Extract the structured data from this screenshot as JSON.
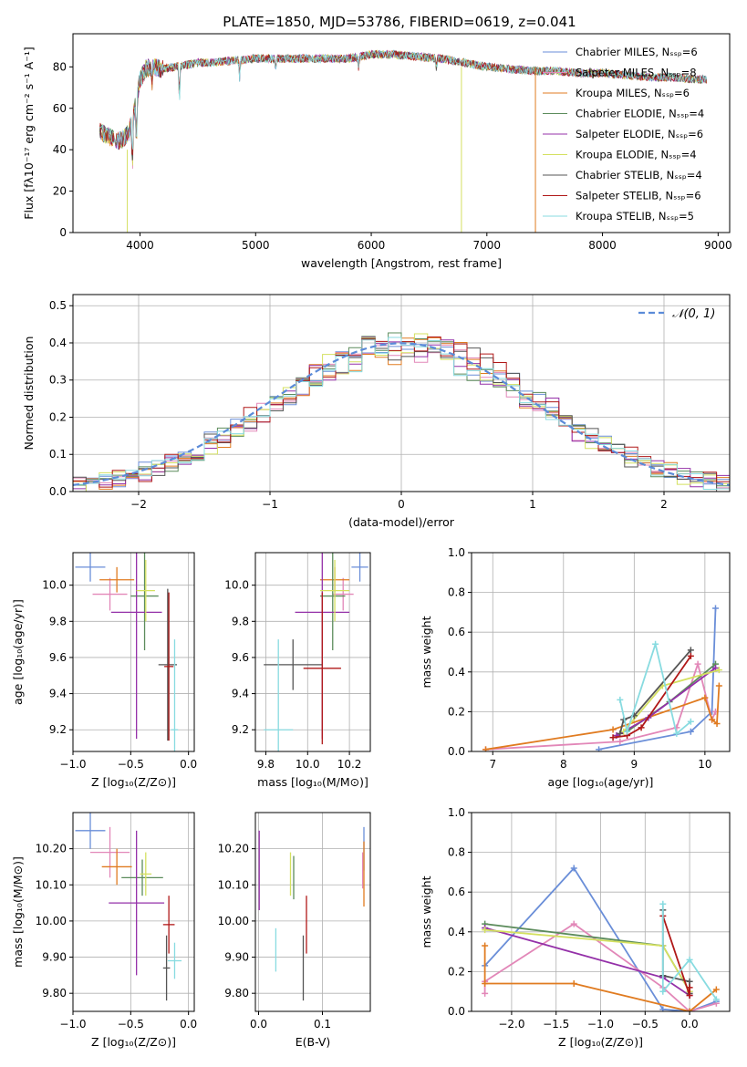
{
  "colors": {
    "Chabrier MILES": "#6a8ed8",
    "Salpeter MILES": "#e287b8",
    "Kroupa MILES": "#e07b20",
    "Chabrier ELODIE": "#5c8c5c",
    "Salpeter ELODIE": "#9430a8",
    "Kroupa ELODIE": "#d4e060",
    "Chabrier STELIB": "#555555",
    "Salpeter STELIB": "#b01818",
    "Kroupa STELIB": "#88dbe0"
  },
  "chart_data": [
    {
      "id": "spectrum",
      "type": "line",
      "title": "PLATE=1850, MJD=53786, FIBERID=0619, z=0.041",
      "xlabel": "wavelength [Angstrom, rest frame]",
      "ylabel": "Flux [fλ10⁻¹⁷ erg cm⁻² s⁻¹ A⁻¹]",
      "xlim": [
        3420,
        9100
      ],
      "ylim": [
        0,
        96
      ],
      "grid": false,
      "legend": "top-right",
      "xticks": [
        4000,
        5000,
        6000,
        7000,
        8000,
        9000
      ],
      "yticks": [
        0,
        20,
        40,
        60,
        80
      ],
      "continuum": {
        "x": [
          3650,
          3700,
          3750,
          3800,
          3850,
          3900,
          3950,
          4000,
          4050,
          4100,
          4200,
          4300,
          4400,
          4500,
          4600,
          4800,
          5000,
          5200,
          5500,
          5800,
          6000,
          6200,
          6400,
          6600,
          6800,
          7000,
          7200,
          7400,
          7600,
          7800,
          8000,
          8200,
          8400,
          8600,
          8800,
          8900
        ],
        "y": [
          50,
          47,
          46,
          44,
          45,
          48,
          58,
          74,
          79,
          80,
          79,
          80,
          81,
          82,
          82,
          83,
          84,
          84,
          84,
          84,
          86,
          86,
          85,
          84,
          82,
          80,
          79,
          78,
          78,
          77,
          77,
          76,
          75,
          75,
          74,
          74
        ]
      },
      "series": [
        {
          "name": "Chabrier MILES, Nₛₛₚ=6",
          "key": "Chabrier MILES"
        },
        {
          "name": "Salpeter MILES, Nₛₛₚ=8",
          "key": "Salpeter MILES"
        },
        {
          "name": "Kroupa MILES, Nₛₛₚ=6",
          "key": "Kroupa MILES"
        },
        {
          "name": "Chabrier ELODIE, Nₛₛₚ=4",
          "key": "Chabrier ELODIE"
        },
        {
          "name": "Salpeter ELODIE, Nₛₛₚ=6",
          "key": "Salpeter ELODIE"
        },
        {
          "name": "Kroupa ELODIE, Nₛₛₚ=4",
          "key": "Kroupa ELODIE"
        },
        {
          "name": "Chabrier STELIB, Nₛₛₚ=4",
          "key": "Chabrier STELIB"
        },
        {
          "name": "Salpeter STELIB, Nₛₛₚ=6",
          "key": "Salpeter STELIB"
        },
        {
          "name": "Kroupa STELIB, Nₛₛₚ=5",
          "key": "Kroupa STELIB"
        }
      ]
    },
    {
      "id": "residuals",
      "type": "histogram",
      "xlabel": "(data-model)/error",
      "ylabel": "Normed distribution",
      "xlim": [
        -2.5,
        2.5
      ],
      "ylim": [
        0,
        0.53
      ],
      "grid": true,
      "legend": "top-right",
      "xticks": [
        -2,
        -1,
        0,
        1,
        2
      ],
      "yticks": [
        0.0,
        0.1,
        0.2,
        0.3,
        0.4,
        0.5
      ],
      "reference": {
        "name": "𝒩(0, 1)",
        "mean": 0,
        "sigma": 1
      },
      "bin_width": 0.1
    },
    {
      "id": "age-Z",
      "type": "errorbar",
      "xlabel": "Z [log₁₀(Z/Z⊙)]",
      "ylabel": "age  [log₁₀(age/yr)]",
      "xlim": [
        -1.0,
        0.05
      ],
      "ylim": [
        9.08,
        10.18
      ],
      "grid": true,
      "xticks": [
        -1.0,
        -0.5,
        0.0
      ],
      "yticks": [
        9.2,
        9.4,
        9.6,
        9.8,
        10.0
      ],
      "points": [
        {
          "key": "Chabrier MILES",
          "x": -0.85,
          "y": 10.1,
          "xerr": 0.13,
          "yerr": 0.08
        },
        {
          "key": "Salpeter MILES",
          "x": -0.68,
          "y": 9.95,
          "xerr": 0.15,
          "yerr": 0.09
        },
        {
          "key": "Kroupa MILES",
          "x": -0.62,
          "y": 10.03,
          "xerr": 0.15,
          "yerr": 0.07
        },
        {
          "key": "Chabrier ELODIE",
          "x": -0.38,
          "y": 9.94,
          "xerr": 0.12,
          "yerr": 0.3
        },
        {
          "key": "Salpeter ELODIE",
          "x": -0.45,
          "y": 9.85,
          "xerr": 0.22,
          "yerr": 0.7
        },
        {
          "key": "Kroupa ELODIE",
          "x": -0.37,
          "y": 9.97,
          "xerr": 0.08,
          "yerr": 0.17
        },
        {
          "key": "Chabrier STELIB",
          "x": -0.18,
          "y": 9.56,
          "xerr": 0.08,
          "yerr": 0.42
        },
        {
          "key": "Salpeter STELIB",
          "x": -0.17,
          "y": 9.55,
          "xerr": 0.04,
          "yerr": 0.41
        },
        {
          "key": "Kroupa STELIB",
          "x": -0.12,
          "y": 9.2,
          "xerr": 0.03,
          "yerr": 0.5
        }
      ]
    },
    {
      "id": "age-mass",
      "type": "errorbar",
      "xlabel": "mass [log₁₀(M/M⊙)]",
      "ylabel": "",
      "xlim": [
        9.75,
        10.3
      ],
      "ylim": [
        9.08,
        10.18
      ],
      "grid": true,
      "xticks": [
        9.8,
        10.0,
        10.2
      ],
      "yticks": [
        9.2,
        9.4,
        9.6,
        9.8,
        10.0
      ],
      "points": [
        {
          "key": "Chabrier MILES",
          "x": 10.25,
          "y": 10.1,
          "xerr": 0.04,
          "yerr": 0.08
        },
        {
          "key": "Salpeter MILES",
          "x": 10.17,
          "y": 9.95,
          "xerr": 0.05,
          "yerr": 0.09
        },
        {
          "key": "Kroupa MILES",
          "x": 10.13,
          "y": 10.03,
          "xerr": 0.07,
          "yerr": 0.07
        },
        {
          "key": "Chabrier ELODIE",
          "x": 10.12,
          "y": 9.94,
          "xerr": 0.06,
          "yerr": 0.3
        },
        {
          "key": "Salpeter ELODIE",
          "x": 10.07,
          "y": 9.85,
          "xerr": 0.13,
          "yerr": 0.7
        },
        {
          "key": "Kroupa ELODIE",
          "x": 10.13,
          "y": 9.97,
          "xerr": 0.07,
          "yerr": 0.17
        },
        {
          "key": "Chabrier STELIB",
          "x": 9.93,
          "y": 9.56,
          "xerr": 0.14,
          "yerr": 0.14
        },
        {
          "key": "Salpeter STELIB",
          "x": 10.07,
          "y": 9.54,
          "xerr": 0.09,
          "yerr": 0.42
        },
        {
          "key": "Kroupa STELIB",
          "x": 9.86,
          "y": 9.2,
          "xerr": 0.07,
          "yerr": 0.5
        }
      ]
    },
    {
      "id": "weight-age",
      "type": "line",
      "xlabel": "age  [log₁₀(age/yr)]",
      "ylabel": "mass weight",
      "xlim": [
        6.7,
        10.35
      ],
      "ylim": [
        0,
        1.0
      ],
      "grid": true,
      "xticks": [
        7,
        8,
        9,
        10
      ],
      "yticks": [
        0.0,
        0.2,
        0.4,
        0.6,
        0.8,
        1.0
      ],
      "series": [
        {
          "key": "Chabrier MILES",
          "x": [
            8.5,
            9.8,
            10.1,
            10.15
          ],
          "y": [
            0.01,
            0.1,
            0.2,
            0.72
          ]
        },
        {
          "key": "Salpeter MILES",
          "x": [
            6.9,
            8.8,
            9.6,
            9.9,
            10.1,
            10.15
          ],
          "y": [
            0.01,
            0.05,
            0.12,
            0.44,
            0.16,
            0.2
          ]
        },
        {
          "key": "Kroupa MILES",
          "x": [
            6.9,
            8.7,
            10.0,
            10.1,
            10.17,
            10.2
          ],
          "y": [
            0.01,
            0.11,
            0.27,
            0.16,
            0.14,
            0.33
          ]
        },
        {
          "key": "Chabrier ELODIE",
          "x": [
            8.9,
            9.5,
            10.15
          ],
          "y": [
            0.1,
            0.25,
            0.44
          ]
        },
        {
          "key": "Salpeter ELODIE",
          "x": [
            8.75,
            9.2,
            10.15
          ],
          "y": [
            0.08,
            0.17,
            0.42
          ]
        },
        {
          "key": "Kroupa ELODIE",
          "x": [
            8.85,
            9.4,
            10.2
          ],
          "y": [
            0.1,
            0.33,
            0.41
          ]
        },
        {
          "key": "Chabrier STELIB",
          "x": [
            8.8,
            8.85,
            9.0,
            9.8
          ],
          "y": [
            0.09,
            0.16,
            0.18,
            0.51
          ]
        },
        {
          "key": "Salpeter STELIB",
          "x": [
            8.7,
            8.9,
            9.1,
            9.8
          ],
          "y": [
            0.07,
            0.08,
            0.12,
            0.48
          ]
        },
        {
          "key": "Kroupa STELIB",
          "x": [
            8.8,
            8.9,
            9.3,
            9.6,
            9.8
          ],
          "y": [
            0.26,
            0.1,
            0.54,
            0.09,
            0.15
          ]
        }
      ]
    },
    {
      "id": "mass-Z",
      "type": "errorbar",
      "xlabel": "Z [log₁₀(Z/Z⊙)]",
      "ylabel": "mass [log₁₀(M/M⊙)]",
      "xlim": [
        -1.0,
        0.05
      ],
      "ylim": [
        9.75,
        10.3
      ],
      "grid": true,
      "xticks": [
        -1.0,
        -0.5,
        0.0
      ],
      "yticks": [
        9.8,
        9.9,
        10.0,
        10.1,
        10.2
      ],
      "points": [
        {
          "key": "Chabrier MILES",
          "x": -0.85,
          "y": 10.25,
          "xerr": 0.13,
          "yerr": 0.05
        },
        {
          "key": "Salpeter MILES",
          "x": -0.68,
          "y": 10.19,
          "xerr": 0.17,
          "yerr": 0.07
        },
        {
          "key": "Kroupa MILES",
          "x": -0.62,
          "y": 10.15,
          "xerr": 0.13,
          "yerr": 0.05
        },
        {
          "key": "Chabrier ELODIE",
          "x": -0.4,
          "y": 10.12,
          "xerr": 0.18,
          "yerr": 0.05
        },
        {
          "key": "Salpeter ELODIE",
          "x": -0.45,
          "y": 10.05,
          "xerr": 0.24,
          "yerr": 0.2
        },
        {
          "key": "Kroupa ELODIE",
          "x": -0.37,
          "y": 10.13,
          "xerr": 0.05,
          "yerr": 0.06
        },
        {
          "key": "Chabrier STELIB",
          "x": -0.19,
          "y": 9.87,
          "xerr": 0.03,
          "yerr": 0.09
        },
        {
          "key": "Salpeter STELIB",
          "x": -0.17,
          "y": 9.99,
          "xerr": 0.05,
          "yerr": 0.08
        },
        {
          "key": "Kroupa STELIB",
          "x": -0.12,
          "y": 9.89,
          "xerr": 0.06,
          "yerr": 0.05
        }
      ]
    },
    {
      "id": "mass-ebv",
      "type": "errorbar",
      "xlabel": "E(B-V)",
      "ylabel": "",
      "xlim": [
        -0.005,
        0.175
      ],
      "ylim": [
        9.75,
        10.3
      ],
      "grid": true,
      "xticks": [
        0.0,
        0.1
      ],
      "yticks": [
        9.8,
        9.9,
        10.0,
        10.1,
        10.2
      ],
      "points": [
        {
          "key": "Chabrier MILES",
          "x": 0.165,
          "y": 10.2,
          "xerr": 0,
          "yerr": 0.06
        },
        {
          "key": "Salpeter MILES",
          "x": 0.163,
          "y": 10.14,
          "xerr": 0,
          "yerr": 0.05
        },
        {
          "key": "Kroupa MILES",
          "x": 0.165,
          "y": 10.13,
          "xerr": 0,
          "yerr": 0.09
        },
        {
          "key": "Chabrier ELODIE",
          "x": 0.055,
          "y": 10.12,
          "xerr": 0,
          "yerr": 0.06
        },
        {
          "key": "Salpeter ELODIE",
          "x": 0.001,
          "y": 10.14,
          "xerr": 0,
          "yerr": 0.11
        },
        {
          "key": "Kroupa ELODIE",
          "x": 0.05,
          "y": 10.13,
          "xerr": 0,
          "yerr": 0.06
        },
        {
          "key": "Chabrier STELIB",
          "x": 0.07,
          "y": 9.87,
          "xerr": 0,
          "yerr": 0.09
        },
        {
          "key": "Salpeter STELIB",
          "x": 0.075,
          "y": 9.99,
          "xerr": 0,
          "yerr": 0.08
        },
        {
          "key": "Kroupa STELIB",
          "x": 0.027,
          "y": 9.92,
          "xerr": 0,
          "yerr": 0.06
        }
      ]
    },
    {
      "id": "weight-Z",
      "type": "line",
      "xlabel": "Z [log₁₀(Z/Z⊙)]",
      "ylabel": "mass weight",
      "xlim": [
        -2.45,
        0.45
      ],
      "ylim": [
        0,
        1.0
      ],
      "grid": true,
      "xticks": [
        -2.0,
        -1.5,
        -1.0,
        -0.5,
        0.0
      ],
      "yticks": [
        0.0,
        0.2,
        0.4,
        0.6,
        0.8,
        1.0
      ],
      "series": [
        {
          "key": "Chabrier MILES",
          "x": [
            -2.3,
            -1.3,
            -0.3,
            0.0,
            0.3
          ],
          "y": [
            0.23,
            0.72,
            0.01,
            0.0,
            0.05
          ]
        },
        {
          "key": "Salpeter MILES",
          "x": [
            -2.3,
            -2.3,
            -1.3,
            -0.3,
            0.0,
            0.3
          ],
          "y": [
            0.09,
            0.15,
            0.44,
            0.12,
            0.0,
            0.04
          ]
        },
        {
          "key": "Kroupa MILES",
          "x": [
            -2.3,
            -2.3,
            -1.3,
            0.0,
            0.3
          ],
          "y": [
            0.33,
            0.14,
            0.14,
            0.0,
            0.11
          ]
        },
        {
          "key": "Chabrier ELODIE",
          "x": [
            -2.3,
            -0.3,
            0.0
          ],
          "y": [
            0.44,
            0.33,
            0.1
          ]
        },
        {
          "key": "Salpeter ELODIE",
          "x": [
            -2.3,
            -0.3,
            0.0
          ],
          "y": [
            0.42,
            0.17,
            0.08
          ]
        },
        {
          "key": "Kroupa ELODIE",
          "x": [
            -2.3,
            -0.3,
            0.0
          ],
          "y": [
            0.41,
            0.33,
            0.1
          ]
        },
        {
          "key": "Chabrier STELIB",
          "x": [
            -0.3,
            -0.3,
            0.0,
            0.0
          ],
          "y": [
            0.51,
            0.18,
            0.15,
            0.09
          ]
        },
        {
          "key": "Salpeter STELIB",
          "x": [
            -0.3,
            0.0,
            0.0
          ],
          "y": [
            0.48,
            0.08,
            0.12
          ]
        },
        {
          "key": "Kroupa STELIB",
          "x": [
            -0.3,
            -0.3,
            0.0,
            0.3
          ],
          "y": [
            0.54,
            0.1,
            0.26,
            0.06
          ]
        }
      ]
    }
  ]
}
